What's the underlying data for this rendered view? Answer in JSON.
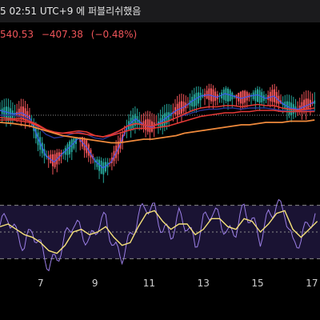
{
  "header": {
    "published": "5 02:51 UTC+9 에 퍼블리쉬했음",
    "price": "540.53",
    "change": "−407.38",
    "change_pct": "(−0.48%)"
  },
  "colors": {
    "background": "#000000",
    "header_bg": "#1b1b1d",
    "down": "#f0555a",
    "up": "#26a69a",
    "rsi": "#9b7fe6",
    "rsi_ma": "#f6e27a",
    "ema_red": "#e53935",
    "ema_orange": "#f08a3c",
    "ema_blue": "#3d5afe",
    "ema_navy": "#283593"
  },
  "chart_data": [
    {
      "type": "line",
      "pane": "price",
      "x": [
        5.5,
        6.0,
        6.3,
        6.6,
        6.9,
        7.2,
        7.5,
        7.8,
        8.1,
        8.4,
        8.7,
        9.0,
        9.3,
        9.6,
        9.9,
        10.2,
        10.5,
        10.8,
        11.1,
        11.4,
        11.7,
        12.0,
        12.3,
        12.6,
        12.9,
        13.2,
        13.5,
        13.8,
        14.1,
        14.4,
        14.7,
        15.0,
        15.3,
        15.6,
        15.9,
        16.2,
        16.5,
        16.8,
        17.1
      ],
      "series": [
        {
          "values": [
            0.8,
            0.5,
            0.6,
            0.2,
            -1.5,
            -3.0,
            -3.5,
            -2.8,
            -2.2,
            -1.5,
            -2.3,
            -3.4,
            -4.0,
            -3.5,
            -2.2,
            -0.5,
            0.1,
            -0.4,
            -0.6,
            -0.2,
            0.3,
            0.8,
            1.1,
            1.6,
            2.0,
            2.1,
            1.9,
            2.2,
            2.0,
            1.8,
            2.0,
            2.1,
            1.8,
            2.0,
            1.4,
            1.0,
            0.9,
            1.2,
            1.5
          ]
        },
        {
          "values": [
            0.4,
            0.4,
            0.3,
            0.0,
            -0.6,
            -1.2,
            -1.5,
            -1.4,
            -1.2,
            -1.0,
            -1.2,
            -1.5,
            -1.6,
            -1.3,
            -0.9,
            -0.5,
            -0.3,
            -0.4,
            -0.5,
            -0.3,
            -0.1,
            0.2,
            0.4,
            0.6,
            0.8,
            0.9,
            0.9,
            1.0,
            1.0,
            0.9,
            1.0,
            1.0,
            1.0,
            0.9,
            0.8,
            0.7,
            0.7,
            0.8,
            0.8
          ]
        },
        {
          "values": [
            0.0,
            0.0,
            -0.1,
            -0.2,
            -0.5,
            -0.8,
            -1.0,
            -1.1,
            -1.1,
            -1.1,
            -1.2,
            -1.3,
            -1.4,
            -1.3,
            -1.1,
            -0.9,
            -0.7,
            -0.7,
            -0.7,
            -0.6,
            -0.5,
            -0.3,
            -0.1,
            0.1,
            0.3,
            0.4,
            0.5,
            0.6,
            0.6,
            0.7,
            0.7,
            0.8,
            0.8,
            0.8,
            0.7,
            0.7,
            0.7,
            0.7,
            0.7
          ]
        },
        {
          "values": [
            0.2,
            0.1,
            0.1,
            -0.1,
            -0.4,
            -0.8,
            -1.1,
            -1.1,
            -1.0,
            -0.9,
            -1.0,
            -1.3,
            -1.4,
            -1.2,
            -0.9,
            -0.5,
            -0.3,
            -0.4,
            -0.5,
            -0.3,
            -0.1,
            0.2,
            0.5,
            0.8,
            1.0,
            1.1,
            1.1,
            1.2,
            1.2,
            1.1,
            1.2,
            1.3,
            1.2,
            1.2,
            1.0,
            0.9,
            0.8,
            0.9,
            1.0
          ]
        },
        {
          "values": [
            -0.2,
            -0.3,
            -0.4,
            -0.5,
            -0.7,
            -0.9,
            -1.1,
            -1.3,
            -1.4,
            -1.5,
            -1.6,
            -1.7,
            -1.8,
            -1.9,
            -1.9,
            -1.8,
            -1.7,
            -1.6,
            -1.6,
            -1.5,
            -1.4,
            -1.3,
            -1.1,
            -1.0,
            -0.9,
            -0.8,
            -0.7,
            -0.6,
            -0.5,
            -0.4,
            -0.4,
            -0.3,
            -0.2,
            -0.2,
            -0.2,
            -0.1,
            -0.1,
            -0.1,
            0.0
          ]
        }
      ],
      "ylim": [
        -6,
        6
      ],
      "x_ticks": [
        "7",
        "9",
        "11",
        "13",
        "15",
        "17"
      ],
      "x_tick_values": [
        7,
        9,
        11,
        13,
        15,
        17
      ],
      "xlim": [
        5.5,
        17.3
      ]
    },
    {
      "type": "line",
      "pane": "rsi",
      "x": [
        5.5,
        5.8,
        6.1,
        6.4,
        6.7,
        7.0,
        7.3,
        7.6,
        7.9,
        8.2,
        8.5,
        8.8,
        9.1,
        9.4,
        9.7,
        10.0,
        10.3,
        10.6,
        10.9,
        11.2,
        11.5,
        11.8,
        12.1,
        12.4,
        12.7,
        13.0,
        13.3,
        13.6,
        13.9,
        14.2,
        14.5,
        14.8,
        15.1,
        15.4,
        15.7,
        16.0,
        16.3,
        16.6,
        16.9,
        17.2
      ],
      "series": [
        {
          "values": [
            55,
            62,
            48,
            40,
            52,
            38,
            25,
            30,
            45,
            58,
            50,
            42,
            55,
            60,
            38,
            32,
            45,
            62,
            70,
            66,
            52,
            48,
            62,
            55,
            40,
            58,
            66,
            60,
            48,
            52,
            68,
            58,
            45,
            62,
            70,
            66,
            40,
            45,
            58,
            62
          ]
        },
        {
          "values": [
            54,
            56,
            52,
            48,
            46,
            42,
            36,
            34,
            40,
            50,
            52,
            48,
            50,
            54,
            46,
            40,
            42,
            54,
            64,
            66,
            58,
            52,
            56,
            56,
            48,
            52,
            60,
            60,
            54,
            52,
            60,
            58,
            50,
            56,
            64,
            66,
            52,
            46,
            52,
            58
          ]
        }
      ],
      "ylim": [
        20,
        80
      ],
      "levels": [
        30,
        50,
        70
      ]
    }
  ]
}
